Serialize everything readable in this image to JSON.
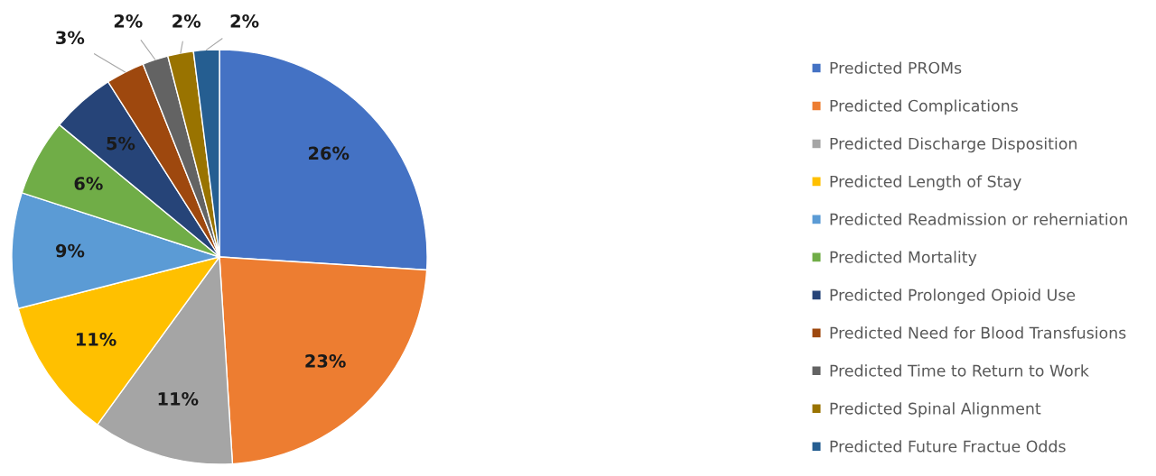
{
  "chart_data": {
    "type": "pie",
    "categories": [
      "Predicted PROMs",
      "Predicted Complications",
      "Predicted Discharge Disposition",
      "Predicted Length of Stay",
      "Predicted Readmission or reherniation",
      "Predicted Mortality",
      "Predicted Prolonged Opioid Use",
      "Predicted Need for Blood Transfusions",
      "Predicted Time to Return to Work",
      "Predicted Spinal Alignment",
      "Predicted Future Fractue Odds"
    ],
    "values": [
      26,
      23,
      11,
      11,
      9,
      6,
      5,
      3,
      2,
      2,
      2
    ],
    "value_labels": [
      "26%",
      "23%",
      "11%",
      "11%",
      "9%",
      "6%",
      "5%",
      "3%",
      "2%",
      "2%",
      "2%"
    ],
    "colors": [
      "#4472c4",
      "#ed7d31",
      "#a5a5a5",
      "#ffc000",
      "#5b9bd5",
      "#70ad47",
      "#264478",
      "#9e480e",
      "#636363",
      "#997300",
      "#255e91"
    ],
    "legend": "right"
  }
}
